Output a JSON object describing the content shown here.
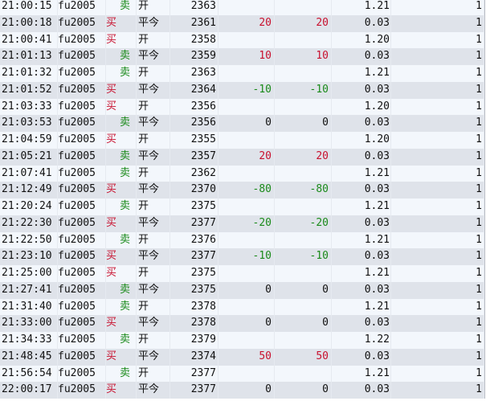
{
  "colors": {
    "buy": "#c8102e",
    "sell": "#1a8a1a",
    "row_light": "#f3f7fc",
    "row_dark": "#dfe3ea"
  },
  "rows": [
    {
      "time": "21:00:15",
      "symbol": "fu2005",
      "side": "卖",
      "action": "开",
      "price": "2363",
      "pnl1": "",
      "pnl2": "",
      "fee": "1.21",
      "qty": "1"
    },
    {
      "time": "21:00:18",
      "symbol": "fu2005",
      "side": "买",
      "action": "平今",
      "price": "2361",
      "pnl1": "20",
      "pnl2": "20",
      "fee": "0.03",
      "qty": "1"
    },
    {
      "time": "21:00:41",
      "symbol": "fu2005",
      "side": "买",
      "action": "开",
      "price": "2358",
      "pnl1": "",
      "pnl2": "",
      "fee": "1.20",
      "qty": "1"
    },
    {
      "time": "21:01:13",
      "symbol": "fu2005",
      "side": "卖",
      "action": "平今",
      "price": "2359",
      "pnl1": "10",
      "pnl2": "10",
      "fee": "0.03",
      "qty": "1"
    },
    {
      "time": "21:01:32",
      "symbol": "fu2005",
      "side": "卖",
      "action": "开",
      "price": "2363",
      "pnl1": "",
      "pnl2": "",
      "fee": "1.21",
      "qty": "1"
    },
    {
      "time": "21:01:52",
      "symbol": "fu2005",
      "side": "买",
      "action": "平今",
      "price": "2364",
      "pnl1": "-10",
      "pnl2": "-10",
      "fee": "0.03",
      "qty": "1"
    },
    {
      "time": "21:03:33",
      "symbol": "fu2005",
      "side": "买",
      "action": "开",
      "price": "2356",
      "pnl1": "",
      "pnl2": "",
      "fee": "1.20",
      "qty": "1"
    },
    {
      "time": "21:03:53",
      "symbol": "fu2005",
      "side": "卖",
      "action": "平今",
      "price": "2356",
      "pnl1": "0",
      "pnl2": "0",
      "fee": "0.03",
      "qty": "1"
    },
    {
      "time": "21:04:59",
      "symbol": "fu2005",
      "side": "买",
      "action": "开",
      "price": "2355",
      "pnl1": "",
      "pnl2": "",
      "fee": "1.20",
      "qty": "1"
    },
    {
      "time": "21:05:21",
      "symbol": "fu2005",
      "side": "卖",
      "action": "平今",
      "price": "2357",
      "pnl1": "20",
      "pnl2": "20",
      "fee": "0.03",
      "qty": "1"
    },
    {
      "time": "21:07:41",
      "symbol": "fu2005",
      "side": "卖",
      "action": "开",
      "price": "2362",
      "pnl1": "",
      "pnl2": "",
      "fee": "1.21",
      "qty": "1"
    },
    {
      "time": "21:12:49",
      "symbol": "fu2005",
      "side": "买",
      "action": "平今",
      "price": "2370",
      "pnl1": "-80",
      "pnl2": "-80",
      "fee": "0.03",
      "qty": "1"
    },
    {
      "time": "21:20:24",
      "symbol": "fu2005",
      "side": "卖",
      "action": "开",
      "price": "2375",
      "pnl1": "",
      "pnl2": "",
      "fee": "1.21",
      "qty": "1"
    },
    {
      "time": "21:22:30",
      "symbol": "fu2005",
      "side": "买",
      "action": "平今",
      "price": "2377",
      "pnl1": "-20",
      "pnl2": "-20",
      "fee": "0.03",
      "qty": "1"
    },
    {
      "time": "21:22:50",
      "symbol": "fu2005",
      "side": "卖",
      "action": "开",
      "price": "2376",
      "pnl1": "",
      "pnl2": "",
      "fee": "1.21",
      "qty": "1"
    },
    {
      "time": "21:23:10",
      "symbol": "fu2005",
      "side": "买",
      "action": "平今",
      "price": "2377",
      "pnl1": "-10",
      "pnl2": "-10",
      "fee": "0.03",
      "qty": "1"
    },
    {
      "time": "21:25:00",
      "symbol": "fu2005",
      "side": "买",
      "action": "开",
      "price": "2375",
      "pnl1": "",
      "pnl2": "",
      "fee": "1.21",
      "qty": "1"
    },
    {
      "time": "21:27:41",
      "symbol": "fu2005",
      "side": "卖",
      "action": "平今",
      "price": "2375",
      "pnl1": "0",
      "pnl2": "0",
      "fee": "0.03",
      "qty": "1"
    },
    {
      "time": "21:31:40",
      "symbol": "fu2005",
      "side": "卖",
      "action": "开",
      "price": "2378",
      "pnl1": "",
      "pnl2": "",
      "fee": "1.21",
      "qty": "1"
    },
    {
      "time": "21:33:00",
      "symbol": "fu2005",
      "side": "买",
      "action": "平今",
      "price": "2378",
      "pnl1": "0",
      "pnl2": "0",
      "fee": "0.03",
      "qty": "1"
    },
    {
      "time": "21:34:33",
      "symbol": "fu2005",
      "side": "卖",
      "action": "开",
      "price": "2379",
      "pnl1": "",
      "pnl2": "",
      "fee": "1.22",
      "qty": "1"
    },
    {
      "time": "21:48:45",
      "symbol": "fu2005",
      "side": "买",
      "action": "平今",
      "price": "2374",
      "pnl1": "50",
      "pnl2": "50",
      "fee": "0.03",
      "qty": "1"
    },
    {
      "time": "21:56:54",
      "symbol": "fu2005",
      "side": "卖",
      "action": "开",
      "price": "2377",
      "pnl1": "",
      "pnl2": "",
      "fee": "1.21",
      "qty": "1"
    },
    {
      "time": "22:00:17",
      "symbol": "fu2005",
      "side": "买",
      "action": "平今",
      "price": "2377",
      "pnl1": "0",
      "pnl2": "0",
      "fee": "0.03",
      "qty": "1"
    }
  ]
}
